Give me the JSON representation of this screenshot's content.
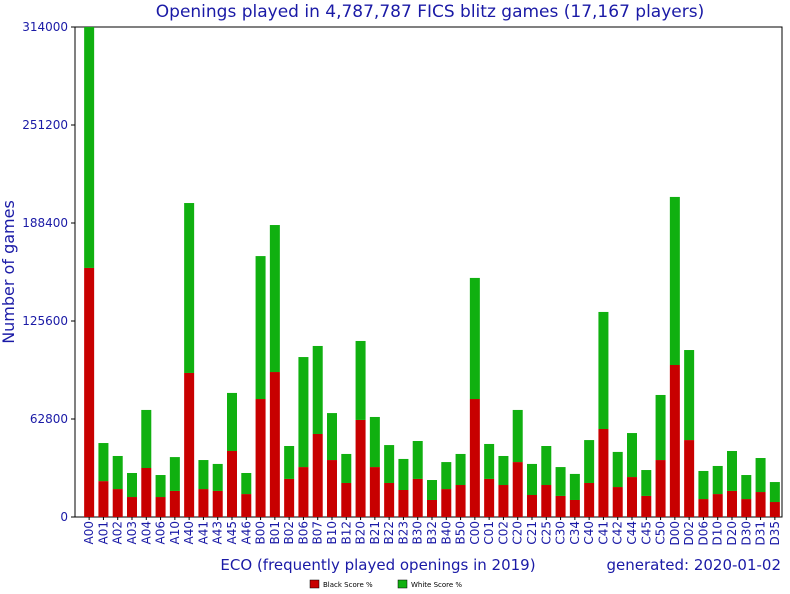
{
  "chart_data": {
    "type": "bar",
    "stacked": true,
    "title": "Openings played in 4,787,787 FICS blitz games (17,167 players)",
    "xlabel": "ECO (frequently played openings in 2019)",
    "ylabel": "Number of games",
    "footnote": "generated: 2020-01-02",
    "legend": "bottom",
    "categories": [
      "A00",
      "A01",
      "A02",
      "A03",
      "A04",
      "A06",
      "A10",
      "A40",
      "A41",
      "A43",
      "A45",
      "A46",
      "B00",
      "B01",
      "B02",
      "B06",
      "B07",
      "B10",
      "B12",
      "B20",
      "B21",
      "B22",
      "B23",
      "B30",
      "B32",
      "B40",
      "B50",
      "C00",
      "C01",
      "C02",
      "C20",
      "C21",
      "C25",
      "C30",
      "C34",
      "C40",
      "C41",
      "C42",
      "C44",
      "C45",
      "C50",
      "D00",
      "D02",
      "D06",
      "D10",
      "D20",
      "D30",
      "D31",
      "D35"
    ],
    "series": [
      {
        "name": "Black Score %",
        "color": "#c80000",
        "values": [
          159600,
          23000,
          17900,
          12800,
          31400,
          12800,
          16700,
          92300,
          17900,
          16700,
          42300,
          14700,
          75600,
          92900,
          24400,
          32000,
          53200,
          36500,
          21800,
          62200,
          32000,
          21800,
          17300,
          24400,
          10900,
          17900,
          20500,
          75600,
          24400,
          20500,
          35200,
          14100,
          20500,
          13500,
          10900,
          21800,
          56400,
          19200,
          25600,
          13500,
          36500,
          97400,
          49300,
          11500,
          14700,
          16700,
          11500,
          16000,
          9600
        ]
      },
      {
        "name": "White Score %",
        "color": "#10b010",
        "values": [
          154400,
          24400,
          21200,
          15400,
          37200,
          14100,
          21700,
          108900,
          18600,
          17300,
          37200,
          13500,
          91600,
          94200,
          21100,
          70500,
          56400,
          30100,
          18600,
          50600,
          32100,
          24300,
          19900,
          24300,
          12800,
          17300,
          19900,
          77600,
          22400,
          18600,
          33400,
          19900,
          25000,
          18500,
          16700,
          27500,
          75000,
          22500,
          28200,
          16600,
          41700,
          107700,
          57700,
          18000,
          18000,
          25600,
          15400,
          21800,
          12800
        ]
      }
    ],
    "ylim": [
      0,
      314000
    ],
    "yticks": [
      0,
      62800,
      125600,
      188400,
      251200,
      314000
    ]
  }
}
